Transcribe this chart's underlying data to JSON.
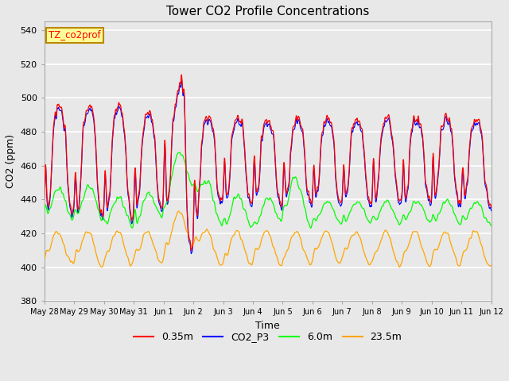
{
  "title": "Tower CO2 Profile Concentrations",
  "xlabel": "Time",
  "ylabel": "CO2 (ppm)",
  "ylim": [
    380,
    545
  ],
  "yticks": [
    380,
    400,
    420,
    440,
    460,
    480,
    500,
    520,
    540
  ],
  "background_color": "#e8e8e8",
  "grid_color": "white",
  "legend_label_box": "TZ_co2prof",
  "legend_box_color": "#ffff99",
  "legend_box_edge": "#bb8800",
  "series_labels": [
    "0.35m",
    "CO2_P3",
    "6.0m",
    "23.5m"
  ],
  "series_colors": [
    "red",
    "blue",
    "lime",
    "orange"
  ],
  "xtick_labels": [
    "May 28",
    "May 29",
    "May 30",
    "May 31",
    "Jun 1",
    "Jun 2",
    "Jun 3",
    "Jun 4",
    "Jun 5",
    "Jun 6",
    "Jun 7",
    "Jun 8",
    "Jun 9",
    "Jun 10",
    "Jun 11",
    "Jun 12"
  ],
  "n_days": 15,
  "pts_per_day": 96
}
